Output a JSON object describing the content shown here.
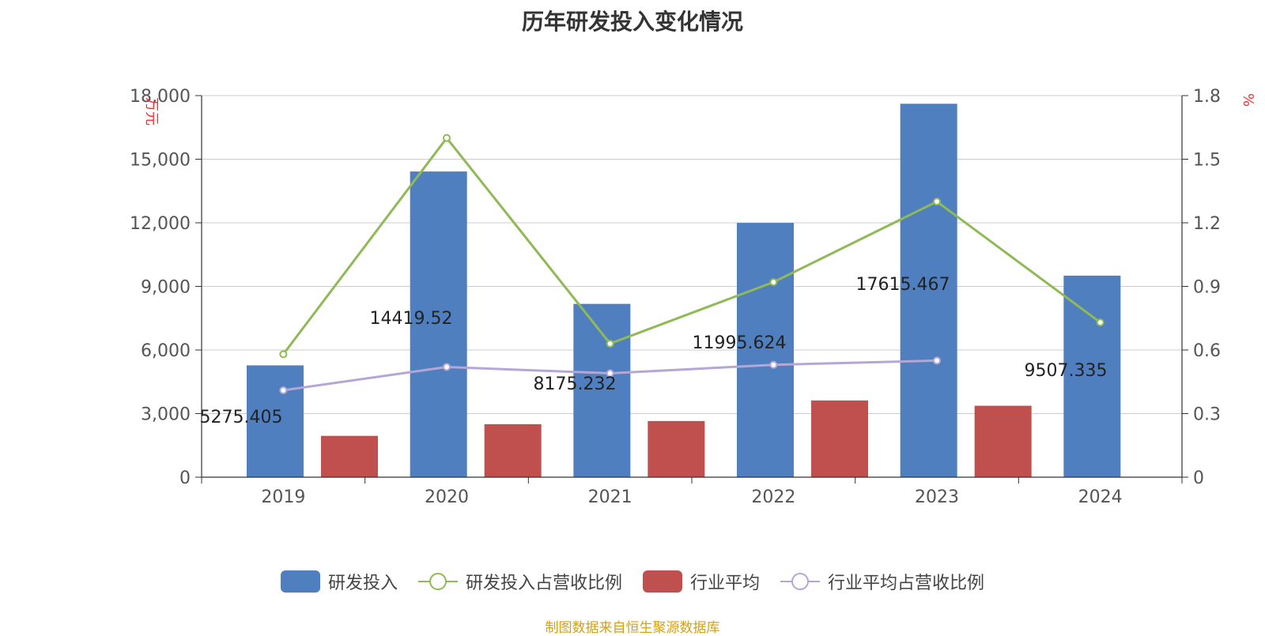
{
  "title": "历年研发投入变化情况",
  "source": "制图数据来自恒生聚源数据库",
  "chart_data": {
    "type": "bar",
    "title": "历年研发投入变化情况",
    "categories": [
      "2019",
      "2020",
      "2021",
      "2022",
      "2023",
      "2024"
    ],
    "y_left": {
      "unit": "万元",
      "ticks": [
        "0",
        "3,000",
        "6,000",
        "9,000",
        "12,000",
        "15,000",
        "18,000"
      ],
      "ylim": [
        0,
        18000
      ]
    },
    "y_right": {
      "unit": "%",
      "ticks": [
        "0",
        "0.3",
        "0.6",
        "0.9",
        "1.2",
        "1.5",
        "1.8"
      ],
      "ylim": [
        0,
        1.8
      ]
    },
    "grid": true,
    "legend_position": "bottom",
    "bar_labels": [
      "5275.405",
      "14419.52",
      "8175.232",
      "11995.624",
      "17615.467",
      "9507.335"
    ],
    "series": [
      {
        "name": "研发投入",
        "type": "bar",
        "axis": "left",
        "color": "#4f7fbf",
        "values": [
          5275.405,
          14419.52,
          8175.232,
          11995.624,
          17615.467,
          9507.335
        ]
      },
      {
        "name": "研发投入占营收比例",
        "type": "line",
        "axis": "right",
        "color": "#8fba55",
        "values": [
          0.58,
          1.6,
          0.63,
          0.92,
          1.3,
          0.73
        ]
      },
      {
        "name": "行业平均",
        "type": "bar",
        "axis": "left",
        "color": "#c0504d",
        "values": [
          1950,
          2500,
          2650,
          3620,
          3370,
          null
        ]
      },
      {
        "name": "行业平均占营收比例",
        "type": "line",
        "axis": "right",
        "color": "#b4a7d6",
        "values": [
          0.41,
          0.52,
          0.49,
          0.53,
          0.55,
          null
        ]
      }
    ]
  }
}
